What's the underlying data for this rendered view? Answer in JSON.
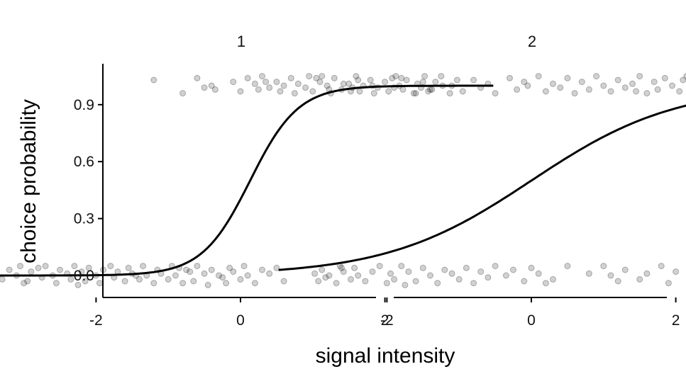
{
  "chart_data": {
    "type": "scatter",
    "title": "",
    "xlabel": "signal intensity",
    "ylabel": "choice probability",
    "xlim": [
      -3.6,
      3.8
    ],
    "ylim": [
      -0.12,
      1.1
    ],
    "x_ticks": [
      -2,
      0,
      2
    ],
    "x_tick_labels": [
      "-2",
      "0",
      "2"
    ],
    "y_ticks": [
      0,
      0.3,
      0.6,
      0.9
    ],
    "y_tick_labels": [
      "0.0",
      "0.3",
      "0.6",
      "0.9"
    ],
    "grid": false,
    "legend": "none",
    "point_color": "#000000",
    "point_opacity": 0.18,
    "line_color": "#000000",
    "panels": [
      {
        "facet": "1",
        "curve": {
          "type": "logistic",
          "intercept": -0.4,
          "slope": 3.0,
          "x_range": [
            -3.5,
            3.5
          ]
        },
        "points_high": [
          [
            -1.2,
            1.03
          ],
          [
            -0.6,
            1.04
          ],
          [
            -0.4,
            1.0
          ],
          [
            -0.8,
            0.96
          ],
          [
            -0.35,
            0.98
          ],
          [
            0.0,
            0.97
          ],
          [
            0.1,
            1.04
          ],
          [
            0.2,
            1.01
          ],
          [
            0.25,
            0.98
          ],
          [
            0.3,
            1.05
          ],
          [
            0.4,
            0.99
          ],
          [
            0.5,
            1.02
          ],
          [
            0.55,
            0.97
          ],
          [
            0.6,
            1.0
          ],
          [
            0.7,
            1.04
          ],
          [
            0.75,
            0.96
          ],
          [
            0.8,
            1.01
          ],
          [
            0.9,
            0.99
          ],
          [
            0.95,
            1.05
          ],
          [
            1.0,
            0.97
          ],
          [
            1.1,
            1.02
          ],
          [
            1.2,
            1.0
          ],
          [
            1.25,
            0.96
          ],
          [
            1.3,
            1.04
          ],
          [
            1.4,
            0.98
          ],
          [
            1.5,
            1.01
          ],
          [
            1.6,
            1.05
          ],
          [
            1.65,
            0.97
          ],
          [
            1.7,
            1.0
          ],
          [
            1.8,
            1.03
          ],
          [
            1.85,
            0.96
          ],
          [
            1.9,
            0.99
          ],
          [
            2.0,
            1.02
          ],
          [
            2.05,
            0.97
          ],
          [
            2.1,
            1.04
          ],
          [
            2.2,
            1.0
          ],
          [
            2.25,
            0.98
          ],
          [
            2.3,
            1.03
          ],
          [
            2.4,
            0.96
          ],
          [
            2.45,
            1.01
          ],
          [
            2.5,
            0.99
          ],
          [
            2.55,
            1.05
          ],
          [
            2.6,
            0.97
          ],
          [
            2.7,
            1.02
          ],
          [
            2.8,
            1.0
          ],
          [
            2.9,
            0.96
          ],
          [
            3.0,
            1.03
          ],
          [
            -0.5,
            0.99
          ],
          [
            0.35,
            1.02
          ],
          [
            1.05,
            1.04
          ],
          [
            1.55,
            0.99
          ],
          [
            2.15,
            1.05
          ],
          [
            2.65,
            0.98
          ],
          [
            -0.1,
            1.02
          ]
        ],
        "points_low": [
          [
            -3.5,
            0.05
          ],
          [
            -3.4,
            0.01
          ],
          [
            -3.3,
            -0.02
          ],
          [
            -3.2,
            0.03
          ],
          [
            -3.1,
            0.0
          ],
          [
            -3.05,
            0.05
          ],
          [
            -2.95,
            -0.03
          ],
          [
            -2.9,
            0.02
          ],
          [
            -2.8,
            0.04
          ],
          [
            -2.75,
            -0.01
          ],
          [
            -2.7,
            0.05
          ],
          [
            -2.6,
            0.0
          ],
          [
            -2.55,
            -0.04
          ],
          [
            -2.5,
            0.03
          ],
          [
            -2.4,
            0.01
          ],
          [
            -2.35,
            -0.02
          ],
          [
            -2.3,
            0.05
          ],
          [
            -2.2,
            0.02
          ],
          [
            -2.15,
            -0.03
          ],
          [
            -2.1,
            0.04
          ],
          [
            -2.0,
            0.0
          ],
          [
            -1.95,
            -0.04
          ],
          [
            -1.9,
            0.03
          ],
          [
            -1.8,
            0.05
          ],
          [
            -1.75,
            -0.01
          ],
          [
            -1.7,
            0.02
          ],
          [
            -1.6,
            -0.03
          ],
          [
            -1.55,
            0.04
          ],
          [
            -1.5,
            0.01
          ],
          [
            -1.4,
            -0.02
          ],
          [
            -1.35,
            0.05
          ],
          [
            -1.3,
            0.0
          ],
          [
            -1.2,
            -0.04
          ],
          [
            -1.15,
            0.03
          ],
          [
            -1.1,
            0.01
          ],
          [
            -1.0,
            -0.02
          ],
          [
            -0.95,
            0.05
          ],
          [
            -0.9,
            0.0
          ],
          [
            -0.8,
            -0.04
          ],
          [
            -0.75,
            0.03
          ],
          [
            -0.7,
            0.02
          ],
          [
            -0.65,
            -0.03
          ],
          [
            -0.6,
            0.05
          ],
          [
            -0.5,
            0.01
          ],
          [
            -0.45,
            -0.05
          ],
          [
            -0.4,
            0.03
          ],
          [
            -0.3,
            0.0
          ],
          [
            -0.2,
            -0.04
          ],
          [
            -0.15,
            0.04
          ],
          [
            -0.1,
            0.02
          ],
          [
            0.0,
            -0.02
          ],
          [
            0.05,
            0.05
          ],
          [
            0.1,
            0.0
          ],
          [
            0.2,
            -0.04
          ],
          [
            0.3,
            0.03
          ],
          [
            0.4,
            0.01
          ],
          [
            0.5,
            0.04
          ],
          [
            0.6,
            -0.03
          ],
          [
            1.4,
            0.04
          ],
          [
            -3.0,
            -0.04
          ],
          [
            -2.25,
            -0.05
          ],
          [
            -1.45,
            0.0
          ],
          [
            -0.85,
            0.04
          ],
          [
            -0.25,
            -0.01
          ]
        ]
      },
      {
        "facet": "2",
        "curve": {
          "type": "logistic",
          "intercept": 0.0,
          "slope": 1.0,
          "x_range": [
            -3.5,
            3.5
          ]
        },
        "points_high": [
          [
            -2.9,
            1.05
          ],
          [
            -2.8,
            0.98
          ],
          [
            -2.6,
            1.01
          ],
          [
            -2.5,
            0.97
          ],
          [
            -2.4,
            1.03
          ],
          [
            -2.2,
            1.0
          ],
          [
            -1.9,
            0.99
          ],
          [
            -1.8,
            1.04
          ],
          [
            -1.6,
            0.96
          ],
          [
            -1.5,
            1.02
          ],
          [
            -1.4,
            0.98
          ],
          [
            -1.25,
            1.05
          ],
          [
            -1.1,
            1.0
          ],
          [
            -0.95,
            0.97
          ],
          [
            -0.8,
            1.03
          ],
          [
            -0.7,
            0.99
          ],
          [
            -0.6,
            1.01
          ],
          [
            -0.5,
            0.96
          ],
          [
            -0.3,
            1.04
          ],
          [
            -0.2,
            0.98
          ],
          [
            -0.1,
            1.02
          ],
          [
            0.1,
            1.05
          ],
          [
            0.2,
            0.97
          ],
          [
            0.3,
            1.01
          ],
          [
            0.4,
            0.99
          ],
          [
            0.5,
            1.04
          ],
          [
            0.6,
            0.96
          ],
          [
            0.7,
            1.02
          ],
          [
            0.8,
            0.98
          ],
          [
            0.9,
            1.05
          ],
          [
            1.0,
            1.0
          ],
          [
            1.1,
            0.97
          ],
          [
            1.2,
            1.03
          ],
          [
            1.3,
            0.99
          ],
          [
            1.4,
            1.01
          ],
          [
            1.5,
            1.05
          ],
          [
            1.6,
            0.96
          ],
          [
            1.7,
            1.02
          ],
          [
            1.75,
            0.98
          ],
          [
            1.85,
            1.04
          ],
          [
            1.95,
            1.0
          ],
          [
            2.05,
            0.97
          ],
          [
            2.1,
            1.03
          ],
          [
            2.2,
            0.99
          ],
          [
            2.3,
            1.05
          ],
          [
            2.35,
            1.01
          ],
          [
            2.45,
            0.97
          ],
          [
            2.55,
            1.03
          ],
          [
            2.6,
            1.0
          ],
          [
            2.7,
            0.98
          ],
          [
            2.8,
            1.04
          ],
          [
            2.9,
            0.99
          ],
          [
            3.0,
            1.02
          ],
          [
            3.1,
            0.97
          ],
          [
            -0.05,
            1.0
          ],
          [
            1.45,
            0.97
          ],
          [
            2.15,
            1.05
          ]
        ],
        "points_low": [
          [
            -3.0,
            0.01
          ],
          [
            -2.95,
            -0.03
          ],
          [
            -2.9,
            0.03
          ],
          [
            -2.85,
            -0.01
          ],
          [
            -2.8,
            0.0
          ],
          [
            -2.7,
            -0.04
          ],
          [
            -2.6,
            0.02
          ],
          [
            -2.5,
            -0.02
          ],
          [
            -2.45,
            0.04
          ],
          [
            -2.4,
            0.0
          ],
          [
            -2.3,
            -0.03
          ],
          [
            -2.2,
            0.02
          ],
          [
            -2.1,
            0.05
          ],
          [
            -2.0,
            -0.04
          ],
          [
            -1.95,
            0.01
          ],
          [
            -1.9,
            -0.02
          ],
          [
            -1.8,
            0.05
          ],
          [
            -1.7,
            0.02
          ],
          [
            -1.6,
            -0.03
          ],
          [
            -1.5,
            0.04
          ],
          [
            -1.4,
            0.0
          ],
          [
            -1.3,
            -0.04
          ],
          [
            -1.2,
            0.03
          ],
          [
            -1.1,
            0.01
          ],
          [
            -1.0,
            -0.02
          ],
          [
            -0.9,
            0.04
          ],
          [
            -0.8,
            -0.04
          ],
          [
            -0.7,
            0.02
          ],
          [
            -0.6,
            -0.01
          ],
          [
            -0.5,
            0.05
          ],
          [
            -0.35,
            0.0
          ],
          [
            -0.25,
            0.03
          ],
          [
            -0.1,
            -0.03
          ],
          [
            0.0,
            0.04
          ],
          [
            0.1,
            0.01
          ],
          [
            0.3,
            -0.02
          ],
          [
            0.5,
            0.05
          ],
          [
            0.8,
            0.01
          ],
          [
            1.0,
            0.05
          ],
          [
            1.1,
            0.0
          ],
          [
            1.2,
            -0.03
          ],
          [
            1.3,
            0.03
          ],
          [
            1.5,
            -0.02
          ],
          [
            1.6,
            0.01
          ],
          [
            1.8,
            0.05
          ],
          [
            1.9,
            -0.04
          ],
          [
            2.0,
            0.02
          ],
          [
            2.2,
            0.0
          ],
          [
            2.4,
            0.04
          ],
          [
            2.5,
            -0.03
          ],
          [
            2.7,
            0.03
          ],
          [
            2.75,
            -0.05
          ],
          [
            2.9,
            -0.03
          ],
          [
            -2.65,
            0.05
          ],
          [
            -1.75,
            -0.05
          ],
          [
            0.2,
            -0.04
          ]
        ]
      }
    ]
  }
}
